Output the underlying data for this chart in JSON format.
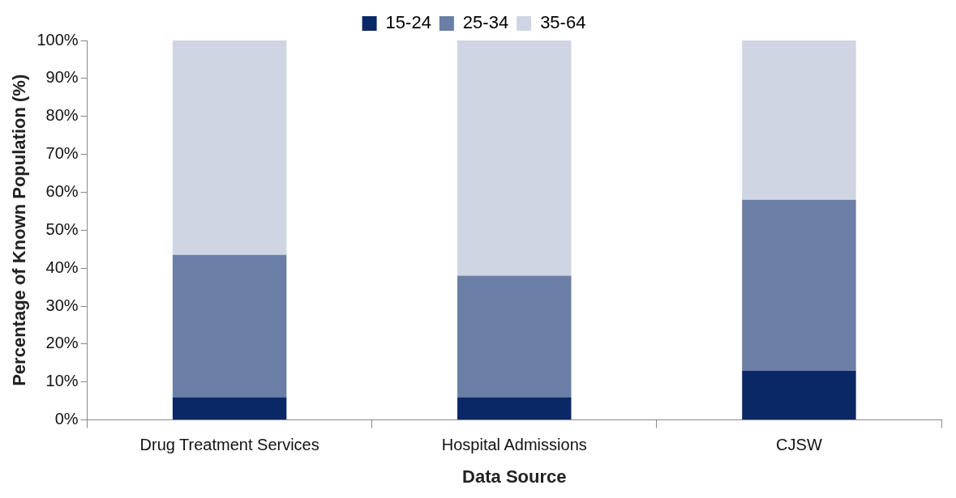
{
  "chart_data": {
    "type": "bar",
    "stacked": true,
    "xlabel": "Data Source",
    "ylabel": "Percentage of Known Population (%)",
    "categories": [
      "Drug Treatment Services",
      "Hospital Admissions",
      "CJSW"
    ],
    "series": [
      {
        "name": "15-24",
        "color": "#0a2866",
        "values": [
          6,
          6,
          13
        ]
      },
      {
        "name": "25-34",
        "color": "#6a7ea6",
        "values": [
          37.5,
          32,
          45
        ]
      },
      {
        "name": "35-64",
        "color": "#cfd5e2",
        "values": [
          56.5,
          62,
          42
        ]
      }
    ],
    "ylim": [
      0,
      100
    ],
    "yticks": [
      {
        "value": 0,
        "label": "0%"
      },
      {
        "value": 10,
        "label": "10%"
      },
      {
        "value": 20,
        "label": "20%"
      },
      {
        "value": 30,
        "label": "30%"
      },
      {
        "value": 40,
        "label": "40%"
      },
      {
        "value": 50,
        "label": "50%"
      },
      {
        "value": 60,
        "label": "60%"
      },
      {
        "value": 70,
        "label": "70%"
      },
      {
        "value": 80,
        "label": "80%"
      },
      {
        "value": 90,
        "label": "90%"
      },
      {
        "value": 100,
        "label": "100%"
      }
    ],
    "grid": false,
    "legend": "top"
  }
}
